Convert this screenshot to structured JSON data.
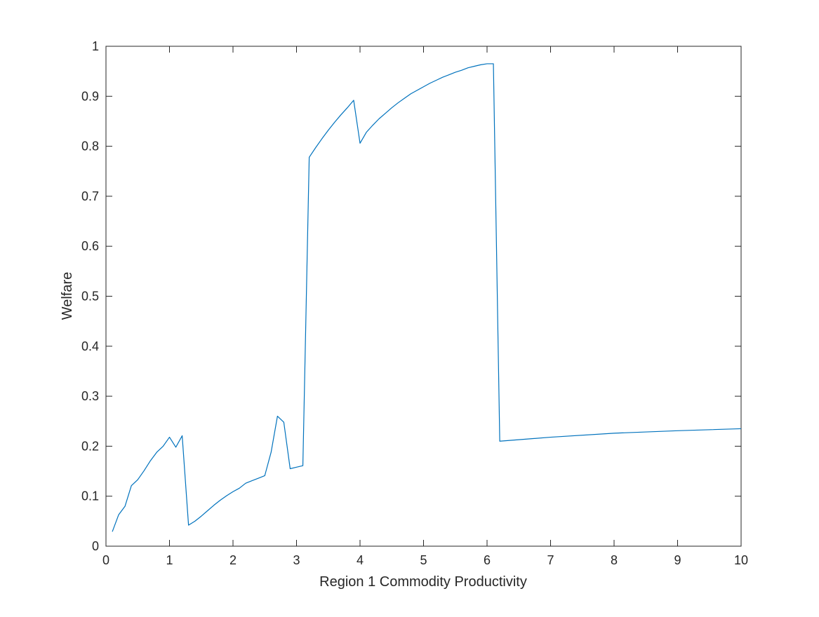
{
  "chart_data": {
    "type": "line",
    "title": "",
    "xlabel": "Region 1 Commodity Productivity",
    "ylabel": "Welfare",
    "xlim": [
      0,
      10
    ],
    "ylim": [
      0,
      1
    ],
    "xticks": [
      0,
      1,
      2,
      3,
      4,
      5,
      6,
      7,
      8,
      9,
      10
    ],
    "yticks": [
      0,
      0.1,
      0.2,
      0.3,
      0.4,
      0.5,
      0.6,
      0.7,
      0.8,
      0.9,
      1
    ],
    "xtick_labels": [
      "0",
      "1",
      "2",
      "3",
      "4",
      "5",
      "6",
      "7",
      "8",
      "9",
      "10"
    ],
    "ytick_labels": [
      "0",
      "0.1",
      "0.2",
      "0.3",
      "0.4",
      "0.5",
      "0.6",
      "0.7",
      "0.8",
      "0.9",
      "1"
    ],
    "grid": false,
    "box": true,
    "series": [
      {
        "color": "#0072bd",
        "x": [
          0.1,
          0.2,
          0.3,
          0.4,
          0.5,
          0.6,
          0.7,
          0.8,
          0.9,
          1.0,
          1.1,
          1.2,
          1.3,
          1.4,
          1.5,
          1.6,
          1.7,
          1.8,
          1.9,
          2.0,
          2.1,
          2.2,
          2.3,
          2.4,
          2.5,
          2.6,
          2.7,
          2.8,
          2.9,
          3.0,
          3.1,
          3.2,
          3.3,
          3.4,
          3.5,
          3.6,
          3.7,
          3.8,
          3.9,
          4.0,
          4.1,
          4.2,
          4.3,
          4.4,
          4.5,
          4.6,
          4.7,
          4.8,
          4.9,
          5.0,
          5.1,
          5.2,
          5.3,
          5.4,
          5.5,
          5.6,
          5.7,
          5.8,
          5.9,
          6.0,
          6.1,
          6.2,
          7.0,
          8.0,
          9.0,
          10.0
        ],
        "y": [
          0.029,
          0.063,
          0.08,
          0.121,
          0.133,
          0.151,
          0.171,
          0.188,
          0.2,
          0.218,
          0.198,
          0.221,
          0.042,
          0.05,
          0.06,
          0.071,
          0.082,
          0.092,
          0.101,
          0.109,
          0.116,
          0.126,
          0.131,
          0.136,
          0.141,
          0.188,
          0.26,
          0.248,
          0.155,
          0.158,
          0.161,
          0.778,
          0.797,
          0.815,
          0.832,
          0.848,
          0.863,
          0.877,
          0.892,
          0.806,
          0.828,
          0.842,
          0.855,
          0.866,
          0.877,
          0.887,
          0.896,
          0.905,
          0.912,
          0.919,
          0.926,
          0.932,
          0.938,
          0.943,
          0.948,
          0.952,
          0.957,
          0.96,
          0.963,
          0.965,
          0.965,
          0.21,
          0.218,
          0.226,
          0.231,
          0.235
        ]
      }
    ]
  }
}
